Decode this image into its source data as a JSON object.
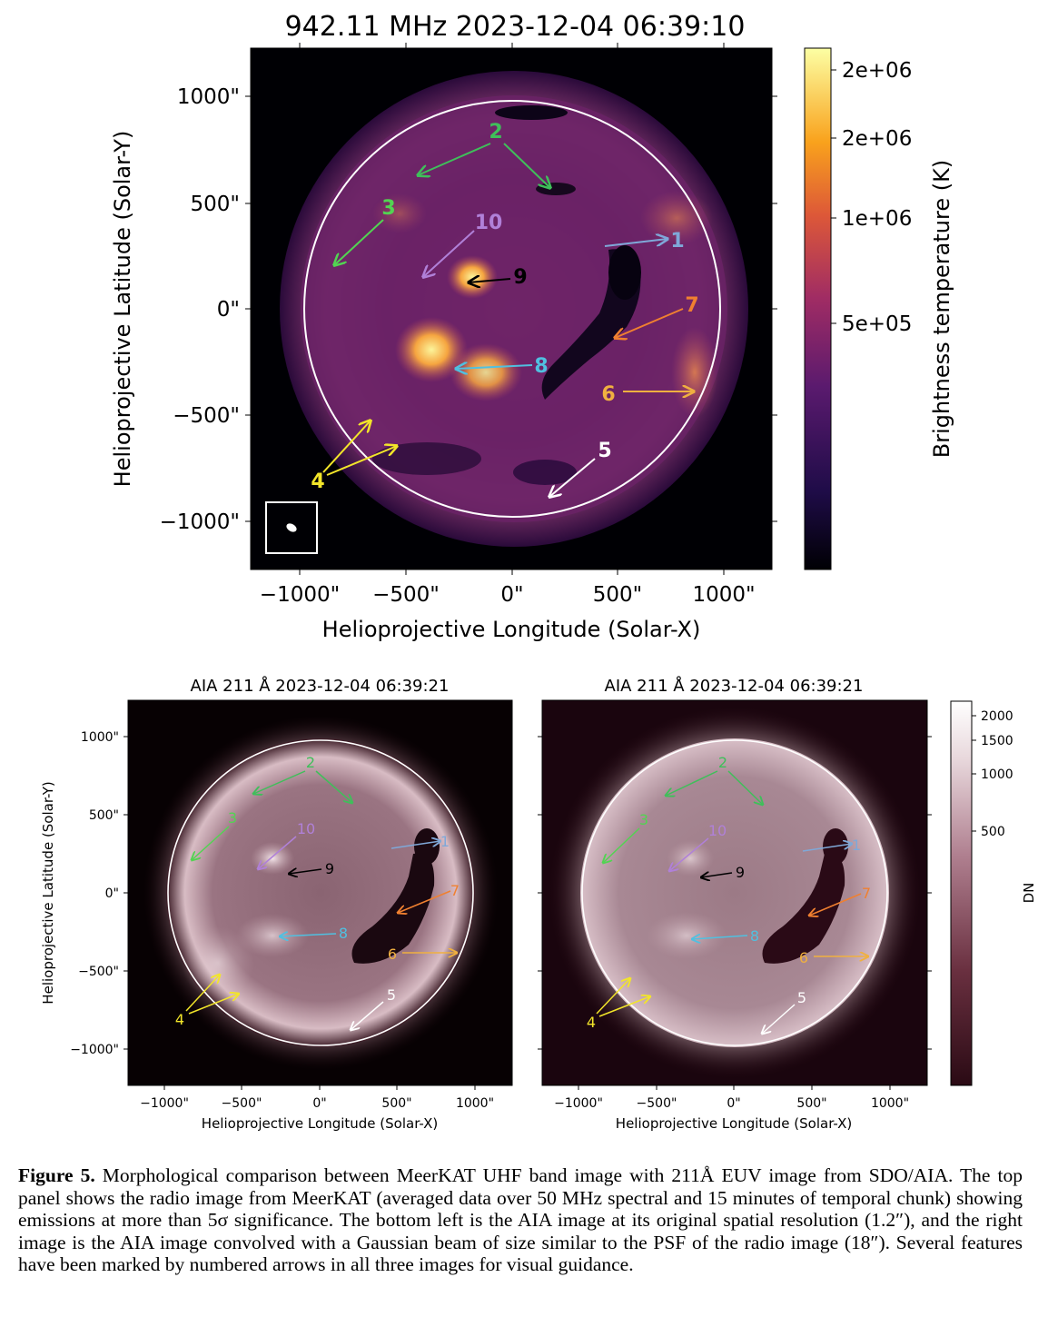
{
  "top_panel": {
    "title": "942.11 MHz 2023-12-04 06:39:10",
    "xlabel": "Helioprojective Longitude (Solar-X)",
    "ylabel": "Helioprojective Latitude (Solar-Y)",
    "x_ticks": [
      "−1000\"",
      "−500\"",
      "0\"",
      "500\"",
      "1000\""
    ],
    "y_ticks": [
      "1000\"",
      "500\"",
      "0\"",
      "−500\"",
      "−1000\""
    ],
    "colorbar_label": "Brightness temperature (K)",
    "colorbar_ticks": [
      "2e+06",
      "2e+06",
      "1e+06",
      "5e+05"
    ],
    "colors": {
      "cmap_dark": "#0b0520",
      "cmap_mid": "#8a2a6a",
      "cmap_bright": "#f7a83b",
      "cmap_top": "#fcffa4"
    }
  },
  "bottom_left": {
    "title": "AIA 211 Å 2023-12-04 06:39:21",
    "xlabel": "Helioprojective Longitude (Solar-X)",
    "ylabel": "Helioprojective Latitude (Solar-Y)",
    "x_ticks": [
      "−1000\"",
      "−500\"",
      "0\"",
      "500\"",
      "1000\""
    ],
    "y_ticks": [
      "1000\"",
      "500\"",
      "0\"",
      "−500\"",
      "−1000\""
    ]
  },
  "bottom_right": {
    "title": "AIA 211 Å 2023-12-04 06:39:21",
    "xlabel": "Helioprojective Longitude (Solar-X)",
    "x_ticks": [
      "−1000\"",
      "−500\"",
      "0\"",
      "500\"",
      "1000\""
    ],
    "colorbar_label": "DN",
    "colorbar_ticks": [
      "2000",
      "1500",
      "1000",
      "500"
    ]
  },
  "markers": [
    {
      "label": "1",
      "color": "#7fa8d8"
    },
    {
      "label": "2",
      "color": "#3fbf5a"
    },
    {
      "label": "3",
      "color": "#52d452"
    },
    {
      "label": "4",
      "color": "#f2e52a"
    },
    {
      "label": "5",
      "color": "#ffffff"
    },
    {
      "label": "6",
      "color": "#f0b040"
    },
    {
      "label": "7",
      "color": "#f08030"
    },
    {
      "label": "8",
      "color": "#50c0e0"
    },
    {
      "label": "9",
      "color": "#000000"
    },
    {
      "label": "10",
      "color": "#b080d8"
    }
  ],
  "caption": {
    "label": "Figure 5.",
    "text": "Morphological comparison between MeerKAT UHF band image with 211Å EUV image from SDO/AIA. The top panel shows the radio image from MeerKAT (averaged data over 50 MHz spectral and 15 minutes of temporal chunk) showing emissions at more than 5σ significance. The bottom left is the AIA image at its original spatial resolution (1.2″), and the right image is the AIA image convolved with a Gaussian beam of size similar to the PSF of the radio image (18″). Several features have been marked by numbered arrows in all three images for visual guidance."
  }
}
